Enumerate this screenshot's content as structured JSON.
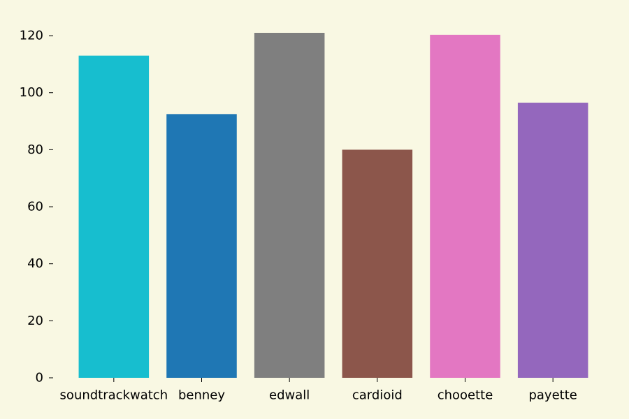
{
  "chart_data": {
    "type": "bar",
    "categories": [
      "soundtrackwatch",
      "benney",
      "edwall",
      "cardioid",
      "chooette",
      "payette"
    ],
    "values": [
      113,
      92.5,
      121,
      80,
      120.3,
      96.5
    ],
    "colors": [
      "#17becf",
      "#1f77b4",
      "#7f7f7f",
      "#8c564b",
      "#e377c2",
      "#9467bd"
    ],
    "yticks": [
      0,
      20,
      40,
      60,
      80,
      100,
      120
    ],
    "ylim": [
      0,
      121
    ],
    "title": "",
    "xlabel": "",
    "ylabel": "",
    "grid": false,
    "background": "#f9f8e3"
  }
}
